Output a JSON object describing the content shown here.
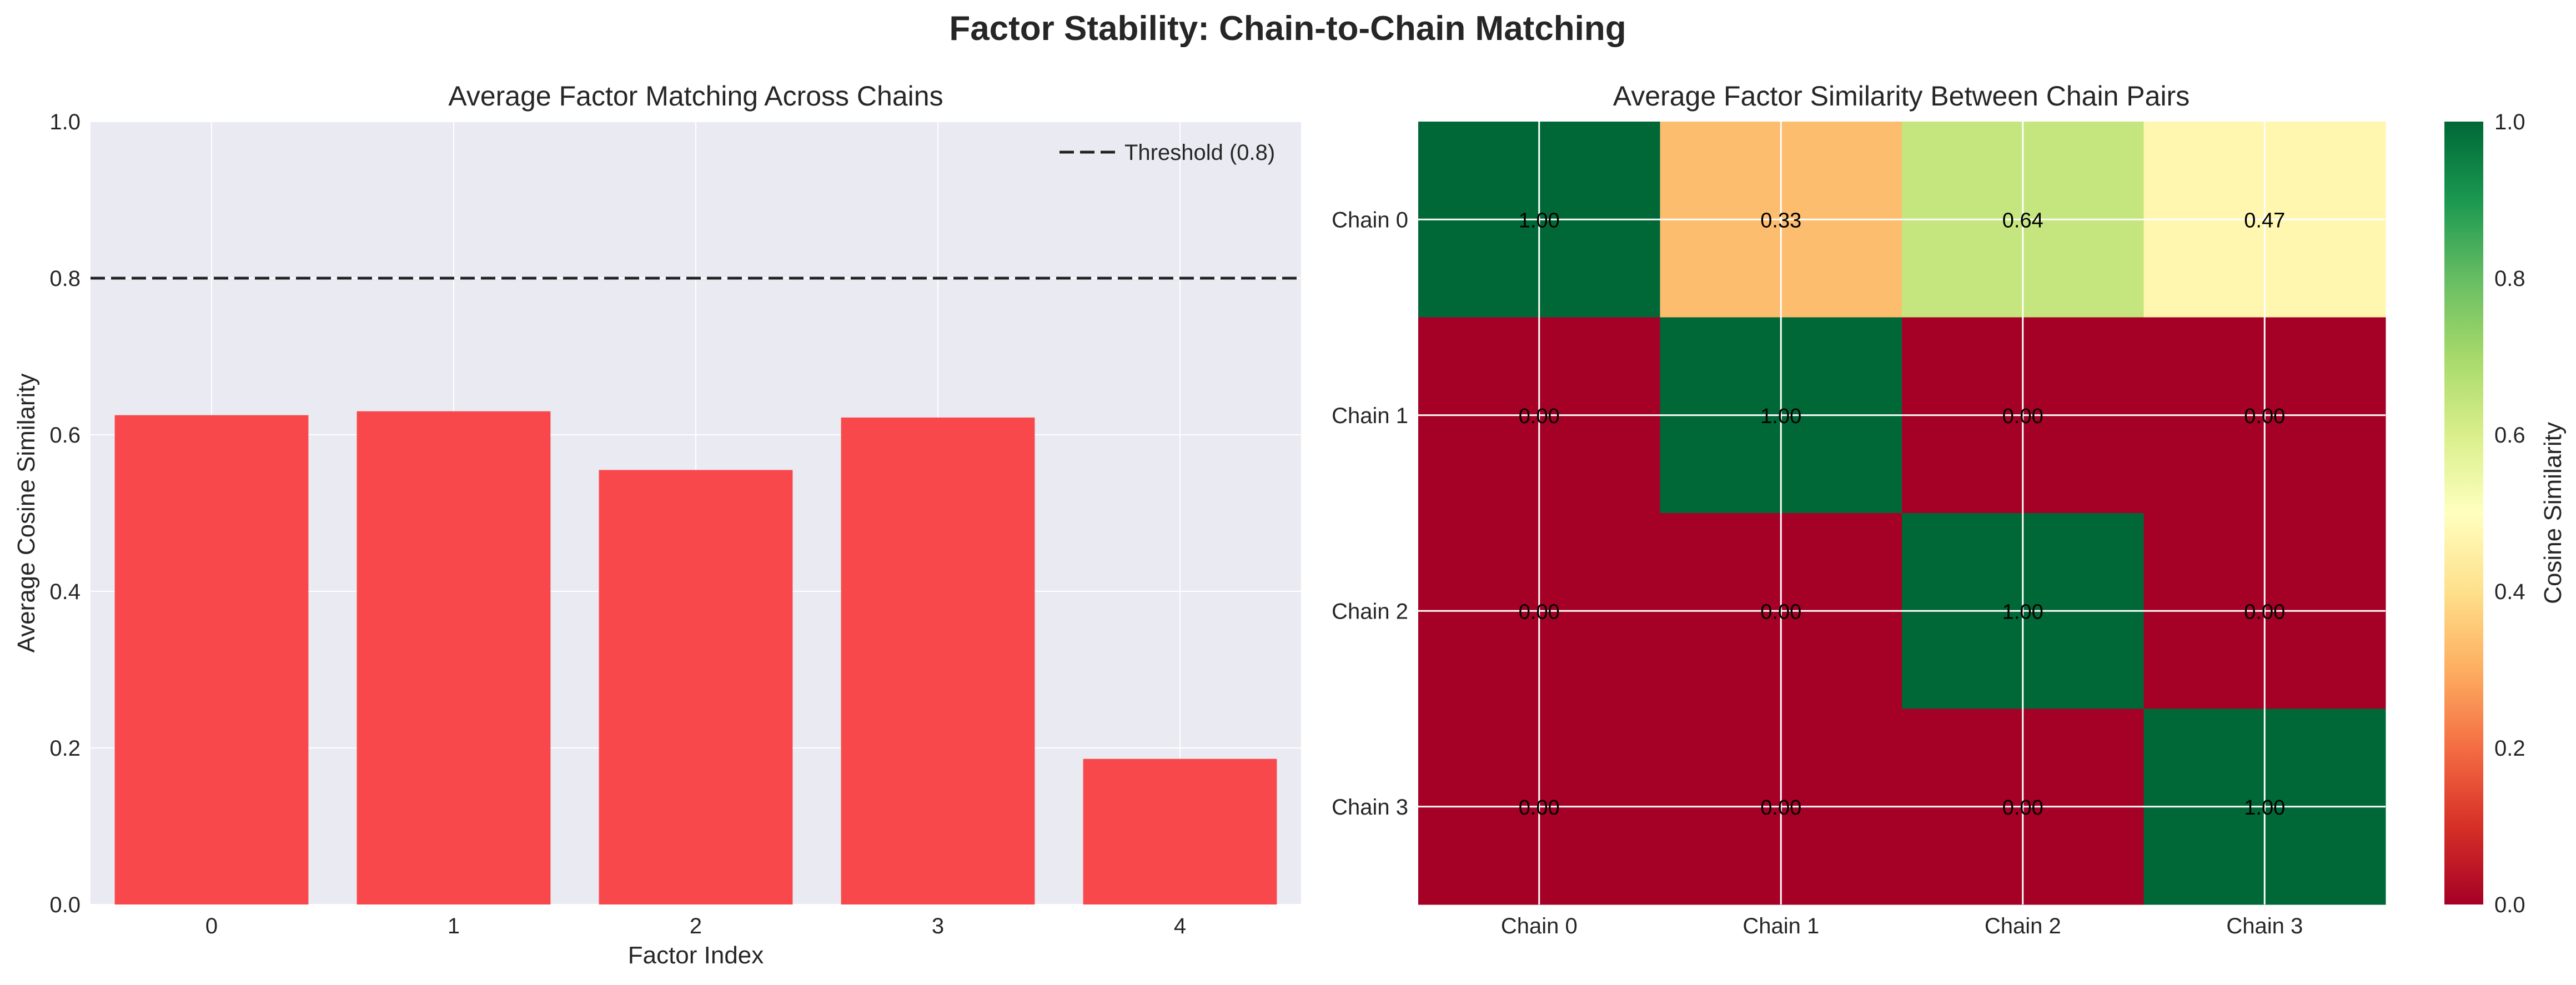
{
  "figure": {
    "suptitle": "Factor Stability: Chain-to-Chain Matching"
  },
  "chart_data": [
    {
      "type": "bar",
      "title": "Average Factor Matching Across Chains",
      "xlabel": "Factor Index",
      "ylabel": "Average Cosine Similarity",
      "categories": [
        "0",
        "1",
        "2",
        "3",
        "4"
      ],
      "values": [
        0.625,
        0.63,
        0.555,
        0.622,
        0.186
      ],
      "bar_color": "#f8484b",
      "ylim": [
        0,
        1.0
      ],
      "yticks": [
        "0.0",
        "0.2",
        "0.4",
        "0.6",
        "0.8",
        "1.0"
      ],
      "threshold": {
        "value": 0.8,
        "label": "Threshold (0.8)",
        "style": "dashed",
        "color": "#222222"
      },
      "legend": {
        "placement": "top-right",
        "entries": [
          "Threshold (0.8)"
        ]
      },
      "grid": true,
      "background": "#eaeaf2"
    },
    {
      "type": "heatmap",
      "title": "Average Factor Similarity Between Chain Pairs",
      "row_labels": [
        "Chain 0",
        "Chain 1",
        "Chain 2",
        "Chain 3"
      ],
      "col_labels": [
        "Chain 0",
        "Chain 1",
        "Chain 2",
        "Chain 3"
      ],
      "values": [
        [
          1.0,
          0.33,
          0.64,
          0.47
        ],
        [
          0.0,
          1.0,
          0.0,
          0.0
        ],
        [
          0.0,
          0.0,
          1.0,
          0.0
        ],
        [
          0.0,
          0.0,
          0.0,
          1.0
        ]
      ],
      "value_labels": [
        [
          "1.00",
          "0.33",
          "0.64",
          "0.47"
        ],
        [
          "0.00",
          "1.00",
          "0.00",
          "0.00"
        ],
        [
          "0.00",
          "0.00",
          "1.00",
          "0.00"
        ],
        [
          "0.00",
          "0.00",
          "0.00",
          "1.00"
        ]
      ],
      "colormap": "RdYlGn",
      "vmin": 0.0,
      "vmax": 1.0,
      "colorbar": {
        "label": "Cosine Similarity",
        "ticks": [
          "0.0",
          "0.2",
          "0.4",
          "0.6",
          "0.8",
          "1.0"
        ]
      },
      "grid": true
    }
  ]
}
